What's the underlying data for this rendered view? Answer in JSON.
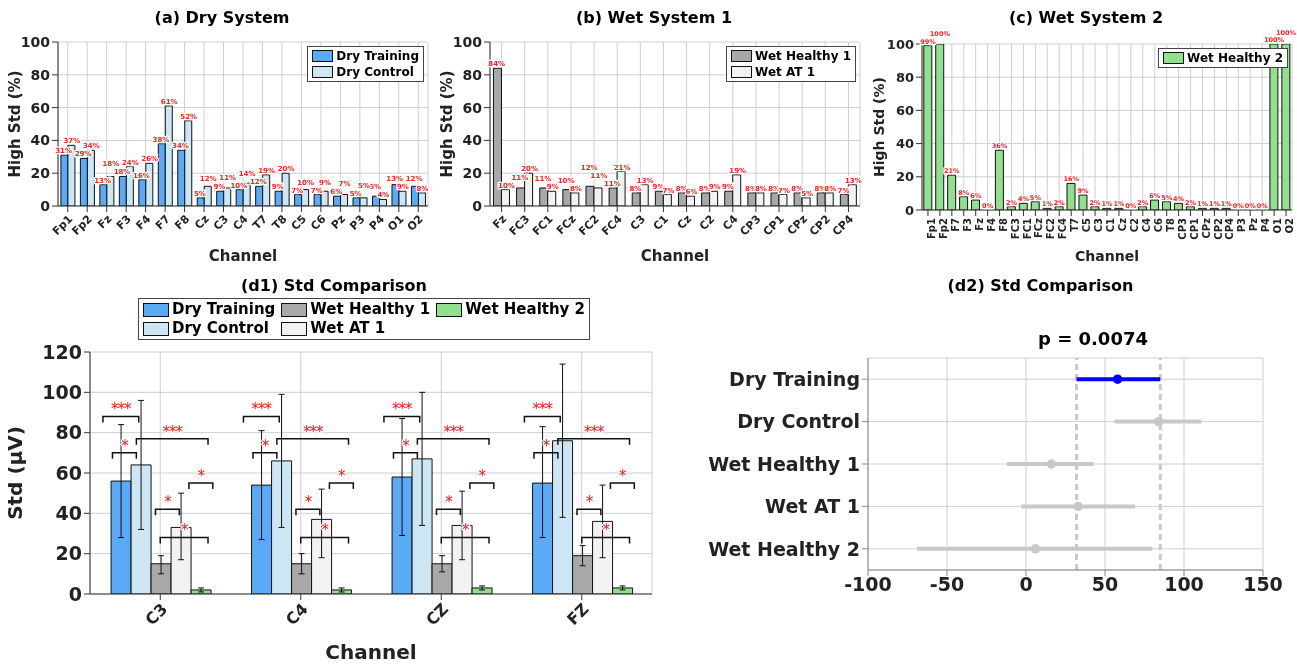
{
  "chart_data": [
    {
      "type": "bar",
      "title": "(a) Dry System",
      "xlabel": "Channel",
      "ylabel": "High Std (%)",
      "categories": [
        "Fp1",
        "Fp2",
        "Fz",
        "F3",
        "F4",
        "F7",
        "F8",
        "Cz",
        "C3",
        "C4",
        "T7",
        "T8",
        "C5",
        "C6",
        "Pz",
        "P3",
        "P4",
        "O1",
        "O2"
      ],
      "series": [
        {
          "name": "Dry Training",
          "color": "#5aaaf5",
          "values": [
            31,
            29,
            13,
            18,
            16,
            38,
            34,
            5,
            9,
            10,
            12,
            9,
            7,
            7,
            6,
            5,
            6,
            13,
            12
          ],
          "value_labels": [
            "31%",
            "29%",
            "13%",
            "18%",
            "16%",
            "38%",
            "34%",
            "5%",
            "9%",
            "10%",
            "12%",
            "9%",
            "7%",
            "7%",
            "6%",
            "5%",
            "6%",
            "13%",
            "12%"
          ]
        },
        {
          "name": "Dry Control",
          "color": "#cde6f4",
          "values": [
            37,
            34,
            18,
            24,
            26,
            61,
            52,
            12,
            11,
            14,
            19,
            20,
            10,
            9,
            7,
            5,
            4,
            9,
            8
          ],
          "value_labels": [
            "37%",
            "34%",
            "18%",
            "24%",
            "26%",
            "61%",
            "52%",
            "12%",
            "11%",
            "14%",
            "19%",
            "20%",
            "10%",
            "9%",
            "7%",
            "5%",
            "4%",
            "9%",
            "8%"
          ]
        }
      ],
      "ylim": [
        0,
        100
      ],
      "yticks": [
        0,
        20,
        40,
        60,
        80,
        100
      ],
      "grid": true,
      "legend": "top right"
    },
    {
      "type": "bar",
      "title": "(b) Wet System 1",
      "xlabel": "Channel",
      "ylabel": "High Std (%)",
      "categories": [
        "Fz",
        "FC3",
        "FC1",
        "FCz",
        "FC2",
        "FC4",
        "C3",
        "C1",
        "Cz",
        "C2",
        "C4",
        "CP3",
        "CP1",
        "CPz",
        "CP2",
        "CP4"
      ],
      "series": [
        {
          "name": "Wet Healthy 1",
          "color": "#a8a8a8",
          "values": [
            84,
            11,
            11,
            10,
            12,
            11,
            8,
            9,
            8,
            8,
            9,
            8,
            8,
            8,
            8,
            7
          ],
          "value_labels": [
            "84%",
            "11%",
            "11%",
            "10%",
            "12%",
            "11%",
            "8%",
            "9%",
            "8%",
            "8%",
            "9%",
            "8%",
            "8%",
            "8%",
            "8%",
            "7%"
          ]
        },
        {
          "name": "Wet AT 1",
          "color": "#f2f2f2",
          "values": [
            10,
            20,
            9,
            8,
            11,
            21,
            13,
            7,
            6,
            9,
            19,
            8,
            7,
            5,
            8,
            13
          ],
          "value_labels": [
            "10%",
            "20%",
            "9%",
            "8%",
            "11%",
            "21%",
            "13%",
            "7%",
            "6%",
            "9%",
            "19%",
            "8%",
            "7%",
            "5%",
            "8%",
            "13%"
          ]
        }
      ],
      "ylim": [
        0,
        100
      ],
      "yticks": [
        0,
        20,
        40,
        60,
        80,
        100
      ],
      "grid": true,
      "legend": "top right"
    },
    {
      "type": "bar",
      "title": "(c) Wet System 2",
      "xlabel": "Channel",
      "ylabel": "High Std (%)",
      "categories": [
        "Fp1",
        "Fp2",
        "F7",
        "F3",
        "Fz",
        "F4",
        "F8",
        "FC3",
        "FC1",
        "FCz",
        "FC2",
        "FC4",
        "T7",
        "C5",
        "C3",
        "C1",
        "Cz",
        "C2",
        "C4",
        "C6",
        "T8",
        "CP3",
        "CP1",
        "CPz",
        "CP2",
        "CP4",
        "P3",
        "Pz",
        "P4",
        "O1",
        "O2"
      ],
      "series": [
        {
          "name": "Wet Healthy 2",
          "color": "#92e08e",
          "values": [
            99,
            100,
            21,
            8,
            6,
            0,
            36,
            2,
            4,
            5,
            1,
            2,
            16,
            9,
            2,
            1,
            1,
            0,
            2,
            6,
            5,
            4,
            2,
            1,
            1,
            1,
            0,
            0,
            0,
            100,
            100
          ],
          "value_labels": [
            "99%",
            "100%",
            "21%",
            "8%",
            "6%",
            "0%",
            "36%",
            "2%",
            "4%",
            "5%",
            "1%",
            "2%",
            "16%",
            "9%",
            "2%",
            "1%",
            "1%",
            "0%",
            "2%",
            "6%",
            "5%",
            "4%",
            "2%",
            "1%",
            "1%",
            "1%",
            "0%",
            "0%",
            "0%",
            "100%",
            "100%"
          ]
        }
      ],
      "ylim": [
        0,
        100
      ],
      "yticks": [
        0,
        20,
        40,
        60,
        80,
        100
      ],
      "grid": true,
      "legend": "top right"
    },
    {
      "type": "bar",
      "title": "(d1) Std Comparison",
      "xlabel": "Channel",
      "ylabel": "Std (μV)",
      "categories": [
        "C3",
        "C4",
        "CZ",
        "FZ"
      ],
      "series": [
        {
          "name": "Dry Training",
          "color": "#5aaaf5",
          "values": [
            56,
            54,
            58,
            55
          ],
          "errors": [
            [
              28,
              84
            ],
            [
              27,
              81
            ],
            [
              29,
              87
            ],
            [
              28,
              83
            ]
          ]
        },
        {
          "name": "Dry Control",
          "color": "#cde6f4",
          "values": [
            64,
            66,
            67,
            76
          ],
          "errors": [
            [
              32,
              96
            ],
            [
              33,
              99
            ],
            [
              34,
              100
            ],
            [
              38,
              114
            ]
          ]
        },
        {
          "name": "Wet Healthy 1",
          "color": "#a8a8a8",
          "values": [
            15,
            15,
            15,
            19
          ],
          "errors": [
            [
              10,
              19
            ],
            [
              10,
              20
            ],
            [
              11,
              19
            ],
            [
              14,
              24
            ]
          ]
        },
        {
          "name": "Wet AT 1",
          "color": "#f2f2f2",
          "values": [
            33,
            37,
            34,
            36
          ],
          "errors": [
            [
              17,
              50
            ],
            [
              18,
              52
            ],
            [
              17,
              51
            ],
            [
              18,
              54
            ]
          ]
        },
        {
          "name": "Wet Healthy 2",
          "color": "#92e08e",
          "values": [
            2,
            2,
            3,
            3
          ],
          "errors": [
            [
              1,
              3
            ],
            [
              1,
              3
            ],
            [
              2,
              4
            ],
            [
              2,
              4
            ]
          ]
        }
      ],
      "ylim": [
        0,
        120
      ],
      "yticks": [
        0,
        20,
        40,
        60,
        80,
        100,
        120
      ],
      "grid": true,
      "legend": "top",
      "annotations": [
        "*",
        "***",
        "***",
        "*",
        "*",
        "*",
        "*",
        "***",
        "***",
        "*",
        "*",
        "*",
        "*",
        "***",
        "***",
        "*",
        "*",
        "*",
        "*",
        "***",
        "***",
        "*",
        "*",
        "*"
      ]
    },
    {
      "type": "scatter",
      "title": "(d2) Std Comparison",
      "orientation": "horizontal",
      "categories": [
        "Dry Training",
        "Dry Control",
        "Wet Healthy 1",
        "Wet AT 1",
        "Wet Healthy 2"
      ],
      "values": [
        58,
        84,
        16,
        33,
        6
      ],
      "errors": [
        [
          32,
          85
        ],
        [
          56,
          111
        ],
        [
          -12,
          43
        ],
        [
          -3,
          69
        ],
        [
          -69,
          80
        ]
      ],
      "colors": [
        "#0000ff",
        "#c8c8c8",
        "#c8c8c8",
        "#c8c8c8",
        "#c8c8c8"
      ],
      "marker": "circle",
      "xlim": [
        -100,
        150
      ],
      "xticks": [
        -100,
        -50,
        0,
        50,
        100,
        150
      ],
      "grid": true,
      "ref_lines": [
        {
          "axis": "x",
          "value": 32,
          "color": "#c8c8c8",
          "line_style": "dashed"
        },
        {
          "axis": "x",
          "value": 85,
          "color": "#c8c8c8",
          "line_style": "dashed"
        }
      ],
      "annotations": [
        "p = 0.0074"
      ]
    }
  ]
}
